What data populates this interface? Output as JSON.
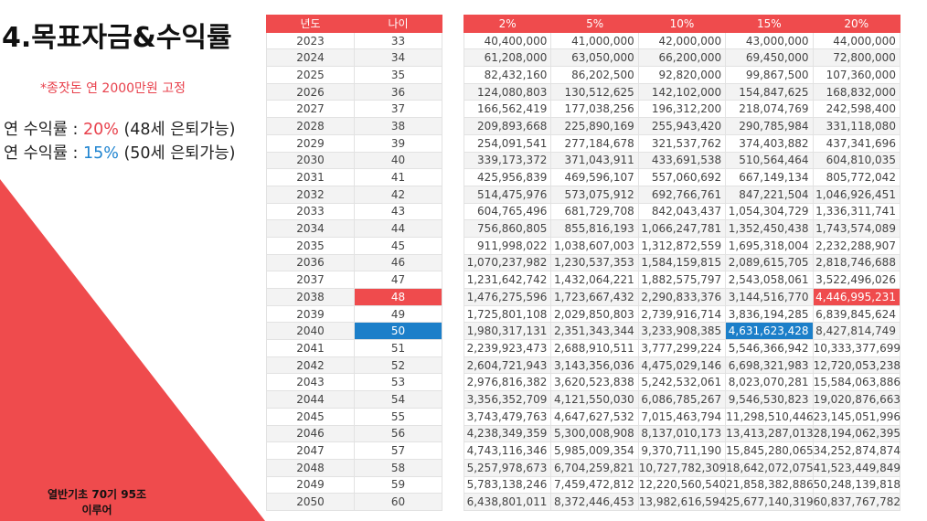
{
  "title": "4.목표자금&수익률",
  "note": "*종잣돈 연 2000만원 고정",
  "rate_lines": [
    {
      "prefix": "연 수익률 : ",
      "rate": "20%",
      "suffix": " (48세 은퇴가능)",
      "color": "#e8414c"
    },
    {
      "prefix": "연 수익률 : ",
      "rate": "15%",
      "suffix": " (50세 은퇴가능)",
      "color": "#1f84d0"
    }
  ],
  "bottom_text": [
    "열반기초 70기 95조",
    "이루어"
  ],
  "year_table": {
    "headers": [
      "년도",
      "나이"
    ],
    "rows": [
      [
        "2023",
        "33"
      ],
      [
        "2024",
        "34"
      ],
      [
        "2025",
        "35"
      ],
      [
        "2026",
        "36"
      ],
      [
        "2027",
        "37"
      ],
      [
        "2028",
        "38"
      ],
      [
        "2029",
        "39"
      ],
      [
        "2030",
        "40"
      ],
      [
        "2031",
        "41"
      ],
      [
        "2032",
        "42"
      ],
      [
        "2033",
        "43"
      ],
      [
        "2034",
        "44"
      ],
      [
        "2035",
        "45"
      ],
      [
        "2036",
        "46"
      ],
      [
        "2037",
        "47"
      ],
      [
        "2038",
        "48"
      ],
      [
        "2039",
        "49"
      ],
      [
        "2040",
        "50"
      ],
      [
        "2041",
        "51"
      ],
      [
        "2042",
        "52"
      ],
      [
        "2043",
        "53"
      ],
      [
        "2044",
        "54"
      ],
      [
        "2045",
        "55"
      ],
      [
        "2046",
        "56"
      ],
      [
        "2047",
        "57"
      ],
      [
        "2048",
        "58"
      ],
      [
        "2049",
        "59"
      ],
      [
        "2050",
        "60"
      ]
    ]
  },
  "value_table": {
    "headers": [
      "2%",
      "5%",
      "10%",
      "15%",
      "20%"
    ],
    "rows": [
      [
        "40,400,000",
        "41,000,000",
        "42,000,000",
        "43,000,000",
        "44,000,000"
      ],
      [
        "61,208,000",
        "63,050,000",
        "66,200,000",
        "69,450,000",
        "72,800,000"
      ],
      [
        "82,432,160",
        "86,202,500",
        "92,820,000",
        "99,867,500",
        "107,360,000"
      ],
      [
        "124,080,803",
        "130,512,625",
        "142,102,000",
        "154,847,625",
        "168,832,000"
      ],
      [
        "166,562,419",
        "177,038,256",
        "196,312,200",
        "218,074,769",
        "242,598,400"
      ],
      [
        "209,893,668",
        "225,890,169",
        "255,943,420",
        "290,785,984",
        "331,118,080"
      ],
      [
        "254,091,541",
        "277,184,678",
        "321,537,762",
        "374,403,882",
        "437,341,696"
      ],
      [
        "339,173,372",
        "371,043,911",
        "433,691,538",
        "510,564,464",
        "604,810,035"
      ],
      [
        "425,956,839",
        "469,596,107",
        "557,060,692",
        "667,149,134",
        "805,772,042"
      ],
      [
        "514,475,976",
        "573,075,912",
        "692,766,761",
        "847,221,504",
        "1,046,926,451"
      ],
      [
        "604,765,496",
        "681,729,708",
        "842,043,437",
        "1,054,304,729",
        "1,336,311,741"
      ],
      [
        "756,860,805",
        "855,816,193",
        "1,066,247,781",
        "1,352,450,438",
        "1,743,574,089"
      ],
      [
        "911,998,022",
        "1,038,607,003",
        "1,312,872,559",
        "1,695,318,004",
        "2,232,288,907"
      ],
      [
        "1,070,237,982",
        "1,230,537,353",
        "1,584,159,815",
        "2,089,615,705",
        "2,818,746,688"
      ],
      [
        "1,231,642,742",
        "1,432,064,221",
        "1,882,575,797",
        "2,543,058,061",
        "3,522,496,026"
      ],
      [
        "1,476,275,596",
        "1,723,667,432",
        "2,290,833,376",
        "3,144,516,770",
        "4,446,995,231"
      ],
      [
        "1,725,801,108",
        "2,029,850,803",
        "2,739,916,714",
        "3,836,194,285",
        "6,839,845,624"
      ],
      [
        "1,980,317,131",
        "2,351,343,344",
        "3,233,908,385",
        "4,631,623,428",
        "8,427,814,749"
      ],
      [
        "2,239,923,473",
        "2,688,910,511",
        "3,777,299,224",
        "5,546,366,942",
        "10,333,377,699"
      ],
      [
        "2,604,721,943",
        "3,143,356,036",
        "4,475,029,146",
        "6,698,321,983",
        "12,720,053,238"
      ],
      [
        "2,976,816,382",
        "3,620,523,838",
        "5,242,532,061",
        "8,023,070,281",
        "15,584,063,886"
      ],
      [
        "3,356,352,709",
        "4,121,550,030",
        "6,086,785,267",
        "9,546,530,823",
        "19,020,876,663"
      ],
      [
        "3,743,479,763",
        "4,647,627,532",
        "7,015,463,794",
        "11,298,510,446",
        "23,145,051,996"
      ],
      [
        "4,238,349,359",
        "5,300,008,908",
        "8,137,010,173",
        "13,413,287,013",
        "28,194,062,395"
      ],
      [
        "4,743,116,346",
        "5,985,009,354",
        "9,370,711,190",
        "15,845,280,065",
        "34,252,874,874"
      ],
      [
        "5,257,978,673",
        "6,704,259,821",
        "10,727,782,309",
        "18,642,072,075",
        "41,523,449,849"
      ],
      [
        "5,783,138,246",
        "7,459,472,812",
        "12,220,560,540",
        "21,858,382,886",
        "50,248,139,818"
      ],
      [
        "6,438,801,011",
        "8,372,446,453",
        "13,982,616,594",
        "25,677,140,319",
        "60,837,767,782"
      ]
    ]
  },
  "highlights": {
    "red_row": 15,
    "blue_row": 17,
    "red_value_col": 4,
    "blue_value_col": 3,
    "red_color": "#ef4b4d",
    "blue_color": "#1c7fc9"
  }
}
